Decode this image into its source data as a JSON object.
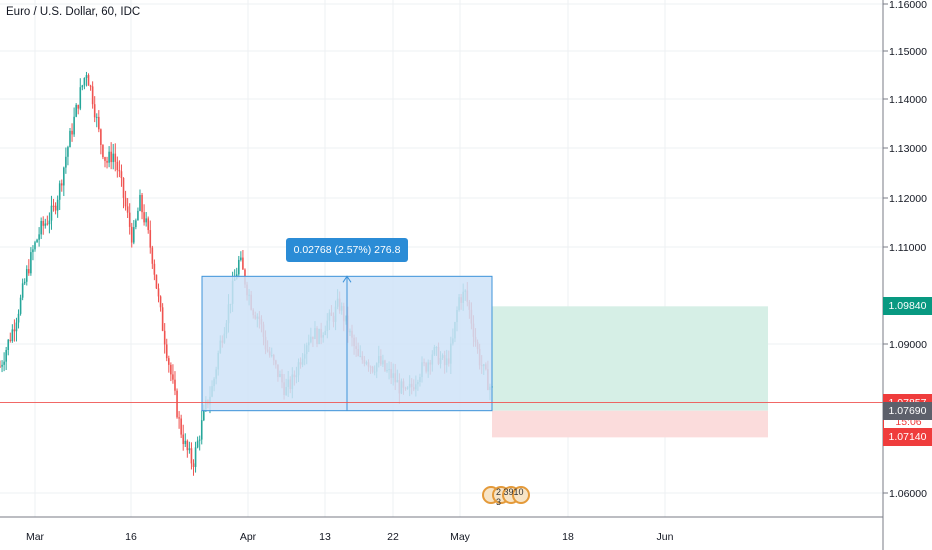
{
  "symbol": {
    "title": "Euro / U.S. Dollar, 60, IDC"
  },
  "chart_data": {
    "type": "candlestick",
    "title": "Euro / U.S. Dollar, 60, IDC",
    "y_axis": {
      "ticks": [
        "1.16000",
        "1.15000",
        "1.14000",
        "1.13000",
        "1.12000",
        "1.11000",
        "1.09000",
        "1.06000"
      ],
      "ylim": [
        1.055,
        1.1615
      ]
    },
    "x_axis": {
      "ticks": [
        "Mar",
        "16",
        "Apr",
        "13",
        "22",
        "May",
        "18",
        "Jun"
      ]
    },
    "price_path": [
      1.086,
      1.09,
      1.094,
      1.099,
      1.105,
      1.11,
      1.114,
      1.116,
      1.118,
      1.123,
      1.13,
      1.136,
      1.142,
      1.147,
      1.141,
      1.133,
      1.128,
      1.13,
      1.125,
      1.118,
      1.112,
      1.12,
      1.115,
      1.108,
      1.098,
      1.09,
      1.082,
      1.074,
      1.069,
      1.066,
      1.072,
      1.078,
      1.082,
      1.09,
      1.096,
      1.102,
      1.108,
      1.103,
      1.098,
      1.096,
      1.09,
      1.087,
      1.084,
      1.081,
      1.083,
      1.087,
      1.091,
      1.093,
      1.092,
      1.095,
      1.096,
      1.099,
      1.095,
      1.091,
      1.087,
      1.088,
      1.086,
      1.087,
      1.085,
      1.084,
      1.082,
      1.08,
      1.082,
      1.085,
      1.086,
      1.089,
      1.088,
      1.086,
      1.09,
      1.1,
      1.101,
      1.095,
      1.088,
      1.084,
      1.081
    ],
    "measure": {
      "low": 1.0769,
      "high": 1.10458,
      "label": "0.02768 (2.57%) 276.8"
    },
    "position": {
      "entry": 1.0769,
      "target": 1.0984,
      "stop": 1.0714
    },
    "current_price": 1.07857
  },
  "price_tags": {
    "target": {
      "value": "1.09840",
      "color": "#089981"
    },
    "current": {
      "value": "1.07857",
      "color": "#ef3c3c"
    },
    "countdown": {
      "value": "15:06",
      "color": "#ef3c3c"
    },
    "entry": {
      "value": "1.07690",
      "color": "#5d606b"
    },
    "stop": {
      "value": "1.07140",
      "color": "#ef3c3c"
    }
  },
  "events": {
    "label": "2 3910 3"
  },
  "colors": {
    "up": "#26a69a",
    "down": "#ef5350",
    "measure_fill": "#cfe3f8",
    "measure_border": "#3d93d9",
    "profit_fill": "#d6efe6",
    "loss_fill": "#fbdcdc",
    "grid": "#eef0f3"
  }
}
